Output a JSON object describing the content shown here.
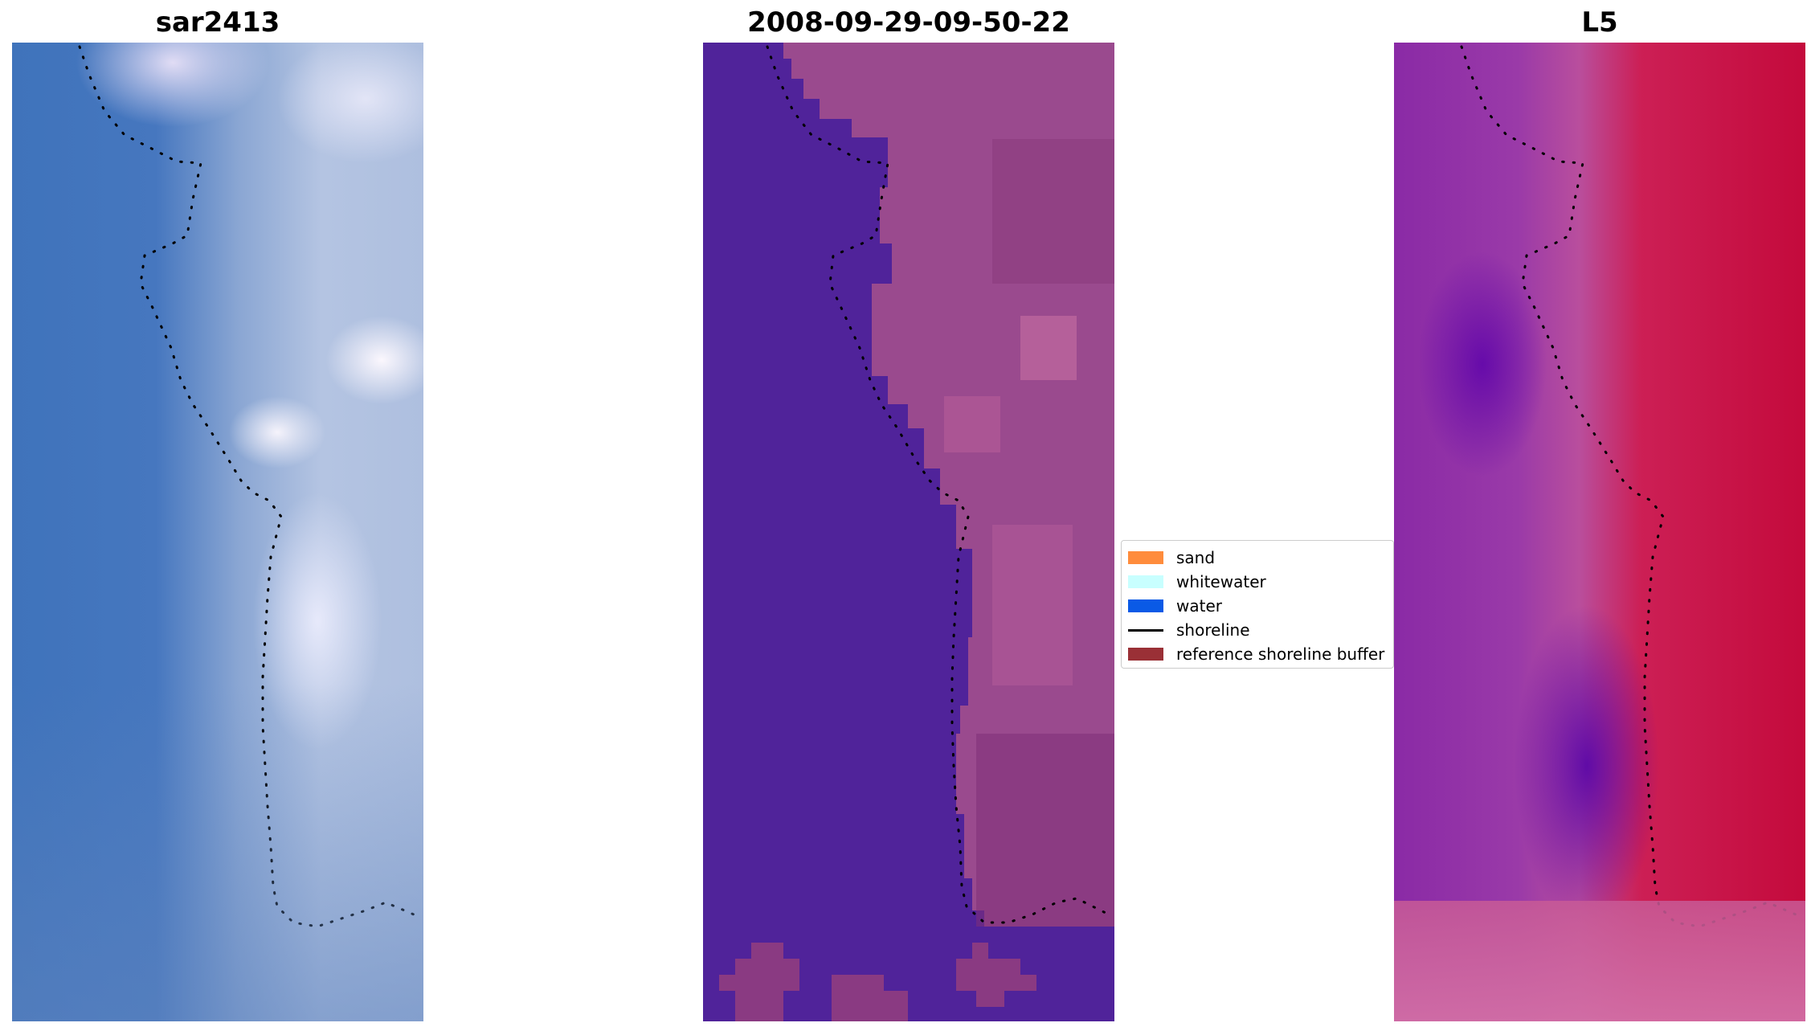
{
  "panels": [
    {
      "title": "sar2413"
    },
    {
      "title": "2008-09-29-09-50-22"
    },
    {
      "title": "L5"
    }
  ],
  "legend": {
    "items": [
      {
        "label": "sand",
        "color": "#ff8c3c",
        "kind": "patch"
      },
      {
        "label": "whitewater",
        "color": "#c8ffff",
        "kind": "patch"
      },
      {
        "label": "water",
        "color": "#0a5ae6",
        "kind": "patch"
      },
      {
        "label": "shoreline",
        "color": "#000000",
        "kind": "line"
      },
      {
        "label": "reference shoreline buffer",
        "color": "#9a3036",
        "kind": "patch"
      }
    ]
  },
  "colors": {
    "classified_water": "#50239a",
    "classified_land": "#9a4a8e",
    "shoreline_dots": "#000000"
  }
}
